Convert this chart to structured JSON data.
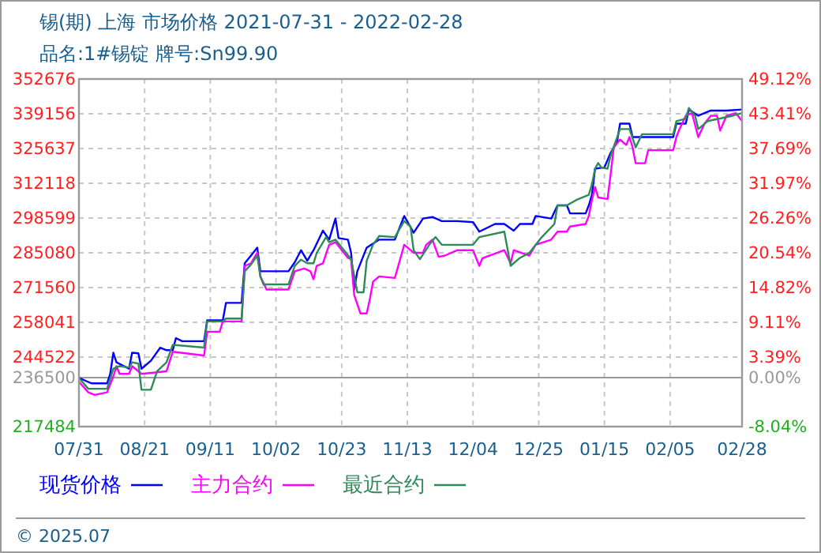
{
  "chart_data": {
    "type": "line",
    "title": "锡(期) 上海 市场价格 2021-07-31 - 2022-02-28",
    "subtitle": "品名:1#锡锭 牌号:Sn99.90",
    "annotations": [
      "© 2025.07"
    ],
    "xlim": [
      "2021-07-31",
      "2022-02-28"
    ],
    "xticks": [
      {
        "value": "2021-07-31",
        "label": "07/31"
      },
      {
        "value": "2021-08-21",
        "label": "08/21"
      },
      {
        "value": "2021-09-11",
        "label": "09/11"
      },
      {
        "value": "2021-10-02",
        "label": "10/02"
      },
      {
        "value": "2021-10-23",
        "label": "10/23"
      },
      {
        "value": "2021-11-13",
        "label": "11/13"
      },
      {
        "value": "2021-12-04",
        "label": "12/04"
      },
      {
        "value": "2021-12-25",
        "label": "12/25"
      },
      {
        "value": "2022-01-15",
        "label": "01/15"
      },
      {
        "value": "2022-02-05",
        "label": "02/05"
      },
      {
        "value": "2022-02-28",
        "label": "02/28"
      }
    ],
    "ylim": [
      217484,
      352676
    ],
    "yticks": [
      217484,
      236500,
      244522,
      258041,
      271560,
      285080,
      298599,
      312118,
      325637,
      339156,
      352676
    ],
    "y2lim": [
      -8.04,
      49.12
    ],
    "y2ticks": [
      {
        "value": -8.04,
        "label": "-8.04%"
      },
      {
        "value": 0,
        "label": "0.00%"
      },
      {
        "value": 3.39,
        "label": "3.39%"
      },
      {
        "value": 9.11,
        "label": "9.11%"
      },
      {
        "value": 14.82,
        "label": "14.82%"
      },
      {
        "value": 20.54,
        "label": "20.54%"
      },
      {
        "value": 26.26,
        "label": "26.26%"
      },
      {
        "value": 31.97,
        "label": "31.97%"
      },
      {
        "value": 37.69,
        "label": "37.69%"
      },
      {
        "value": 43.41,
        "label": "43.41%"
      },
      {
        "value": 49.12,
        "label": "49.12%"
      }
    ],
    "ref_lines": [
      {
        "axis": "y",
        "value": 236500,
        "color": "#999999"
      }
    ],
    "grid": true,
    "legend": "bottom",
    "marker": "none",
    "line_style": "solid",
    "series": [
      {
        "name": "现货价格",
        "color": "#0000ff",
        "x": [
          "2021-07-31",
          "2021-08-04",
          "2021-08-09",
          "2021-08-10",
          "2021-08-11",
          "2021-08-12",
          "2021-08-16",
          "2021-08-17",
          "2021-08-19",
          "2021-08-20",
          "2021-08-23",
          "2021-08-26",
          "2021-08-28",
          "2021-08-30",
          "2021-08-31",
          "2021-09-02",
          "2021-09-09",
          "2021-09-10",
          "2021-09-15",
          "2021-09-16",
          "2021-09-21",
          "2021-09-22",
          "2021-09-24",
          "2021-09-26",
          "2021-09-27",
          "2021-10-06",
          "2021-10-08",
          "2021-10-10",
          "2021-10-12",
          "2021-10-14",
          "2021-10-17",
          "2021-10-19",
          "2021-10-21",
          "2021-10-22",
          "2021-10-25",
          "2021-10-26",
          "2021-10-27",
          "2021-10-28",
          "2021-10-31",
          "2021-11-04",
          "2021-11-09",
          "2021-11-12",
          "2021-11-15",
          "2021-11-18",
          "2021-11-21",
          "2021-11-24",
          "2021-11-29",
          "2021-12-04",
          "2021-12-06",
          "2021-12-11",
          "2021-12-14",
          "2021-12-17",
          "2021-12-19",
          "2021-12-23",
          "2021-12-24",
          "2021-12-29",
          "2021-12-31",
          "2022-01-03",
          "2022-01-04",
          "2022-01-09",
          "2022-01-10",
          "2022-01-11",
          "2022-01-12",
          "2022-01-15",
          "2022-01-17",
          "2022-01-19",
          "2022-01-20",
          "2022-01-23",
          "2022-01-24",
          "2022-02-06",
          "2022-02-07",
          "2022-02-10",
          "2022-02-11",
          "2022-02-14",
          "2022-02-18",
          "2022-02-23",
          "2022-02-28"
        ],
        "values": [
          236400,
          234300,
          234300,
          238000,
          246200,
          242500,
          240000,
          246200,
          246000,
          240000,
          243100,
          248200,
          247200,
          247200,
          251900,
          250700,
          250700,
          258800,
          258800,
          265600,
          265600,
          281000,
          284000,
          287100,
          277900,
          277900,
          281400,
          286100,
          282000,
          286100,
          293700,
          290200,
          298400,
          290800,
          290200,
          285100,
          270800,
          277900,
          287100,
          290200,
          290200,
          299400,
          292900,
          298400,
          299000,
          297400,
          297400,
          297000,
          293300,
          296300,
          296300,
          293700,
          296300,
          296300,
          299400,
          298400,
          303500,
          303500,
          300400,
          300400,
          303500,
          307600,
          317800,
          318300,
          324000,
          328100,
          335300,
          335300,
          330100,
          330100,
          335300,
          335300,
          340800,
          338400,
          340400,
          340400,
          340800
        ]
      },
      {
        "name": "主力合约",
        "color": "#ff00ff",
        "x": [
          "2021-07-31",
          "2021-08-03",
          "2021-08-05",
          "2021-08-09",
          "2021-08-11",
          "2021-08-12",
          "2021-08-13",
          "2021-08-16",
          "2021-08-17",
          "2021-08-20",
          "2021-08-28",
          "2021-08-30",
          "2021-09-09",
          "2021-09-10",
          "2021-09-14",
          "2021-09-15",
          "2021-09-21",
          "2021-09-22",
          "2021-09-24",
          "2021-09-26",
          "2021-09-27",
          "2021-09-29",
          "2021-10-06",
          "2021-10-08",
          "2021-10-11",
          "2021-10-13",
          "2021-10-14",
          "2021-10-15",
          "2021-10-17",
          "2021-10-19",
          "2021-10-21",
          "2021-10-25",
          "2021-10-26",
          "2021-10-27",
          "2021-10-29",
          "2021-10-31",
          "2021-11-01",
          "2021-11-02",
          "2021-11-04",
          "2021-11-09",
          "2021-11-12",
          "2021-11-15",
          "2021-11-18",
          "2021-11-19",
          "2021-11-21",
          "2021-11-23",
          "2021-11-25",
          "2021-11-29",
          "2021-12-04",
          "2021-12-05",
          "2021-12-06",
          "2021-12-07",
          "2021-12-14",
          "2021-12-16",
          "2021-12-17",
          "2021-12-22",
          "2021-12-24",
          "2021-12-29",
          "2021-12-31",
          "2022-01-03",
          "2022-01-04",
          "2022-01-09",
          "2022-01-10",
          "2022-01-11",
          "2022-01-12",
          "2022-01-13",
          "2022-01-16",
          "2022-01-17",
          "2022-01-18",
          "2022-01-20",
          "2022-01-22",
          "2022-01-23",
          "2022-01-24",
          "2022-01-25",
          "2022-01-28",
          "2022-01-29",
          "2022-02-06",
          "2022-02-07",
          "2022-02-08",
          "2022-02-10",
          "2022-02-12",
          "2022-02-14",
          "2022-02-16",
          "2022-02-18",
          "2022-02-20",
          "2022-02-21",
          "2022-02-23",
          "2022-02-26",
          "2022-02-28"
        ],
        "values": [
          234900,
          230800,
          229800,
          230800,
          237000,
          241000,
          238000,
          238000,
          241000,
          238000,
          239000,
          246600,
          245100,
          254400,
          254400,
          258400,
          258400,
          280000,
          281000,
          285100,
          275900,
          270800,
          270800,
          277900,
          279000,
          277900,
          274800,
          280000,
          281000,
          288200,
          289200,
          283100,
          282600,
          268700,
          261500,
          261500,
          267000,
          273800,
          275900,
          275300,
          288200,
          285100,
          285100,
          288200,
          290200,
          283500,
          284000,
          286100,
          286100,
          283000,
          280000,
          283000,
          286100,
          281000,
          286100,
          284000,
          288200,
          290200,
          293300,
          293300,
          295300,
          296300,
          299400,
          305600,
          310700,
          306600,
          306000,
          315800,
          326100,
          329100,
          327000,
          330100,
          326100,
          319900,
          319900,
          325000,
          325000,
          330100,
          333200,
          338400,
          339400,
          330100,
          335300,
          338400,
          338400,
          332600,
          338400,
          339400,
          336300
        ]
      },
      {
        "name": "最近合约",
        "color": "#2e8b57",
        "x": [
          "2021-07-31",
          "2021-08-03",
          "2021-08-09",
          "2021-08-11",
          "2021-08-13",
          "2021-08-16",
          "2021-08-17",
          "2021-08-19",
          "2021-08-20",
          "2021-08-23",
          "2021-08-25",
          "2021-08-28",
          "2021-08-30",
          "2021-09-09",
          "2021-09-10",
          "2021-09-15",
          "2021-09-16",
          "2021-09-21",
          "2021-09-22",
          "2021-09-24",
          "2021-09-26",
          "2021-09-27",
          "2021-09-28",
          "2021-10-06",
          "2021-10-08",
          "2021-10-10",
          "2021-10-12",
          "2021-10-14",
          "2021-10-15",
          "2021-10-18",
          "2021-10-19",
          "2021-10-21",
          "2021-10-26",
          "2021-10-28",
          "2021-10-30",
          "2021-10-31",
          "2021-11-02",
          "2021-11-04",
          "2021-11-09",
          "2021-11-12",
          "2021-11-14",
          "2021-11-15",
          "2021-11-17",
          "2021-11-20",
          "2021-11-22",
          "2021-11-24",
          "2021-11-29",
          "2021-12-04",
          "2021-12-06",
          "2021-12-14",
          "2021-12-16",
          "2021-12-19",
          "2021-12-22",
          "2021-12-26",
          "2021-12-30",
          "2021-12-31",
          "2022-01-03",
          "2022-01-06",
          "2022-01-10",
          "2022-01-11",
          "2022-01-12",
          "2022-01-13",
          "2022-01-14",
          "2022-01-16",
          "2022-01-17",
          "2022-01-20",
          "2022-01-23",
          "2022-01-25",
          "2022-01-27",
          "2022-02-06",
          "2022-02-07",
          "2022-02-10",
          "2022-02-11",
          "2022-02-13",
          "2022-02-14",
          "2022-02-17",
          "2022-02-21",
          "2022-02-25",
          "2022-02-28"
        ],
        "values": [
          236400,
          232200,
          232200,
          240000,
          241000,
          240500,
          242500,
          242000,
          231800,
          231800,
          239000,
          242500,
          249300,
          248200,
          258400,
          258400,
          259500,
          259500,
          277900,
          280500,
          284000,
          275900,
          272800,
          272800,
          280000,
          282400,
          281000,
          281000,
          285000,
          291200,
          289200,
          290200,
          282600,
          269700,
          269700,
          282000,
          288200,
          291600,
          291200,
          297400,
          295300,
          286100,
          282600,
          288200,
          291200,
          288200,
          288200,
          288200,
          291200,
          293300,
          280000,
          283100,
          285100,
          291200,
          296300,
          303500,
          303500,
          305600,
          307600,
          311700,
          317800,
          320000,
          318300,
          317800,
          323000,
          333200,
          333200,
          326100,
          331200,
          331200,
          336300,
          337300,
          341400,
          338400,
          333200,
          336300,
          337300,
          338400,
          339400
        ]
      }
    ]
  }
}
